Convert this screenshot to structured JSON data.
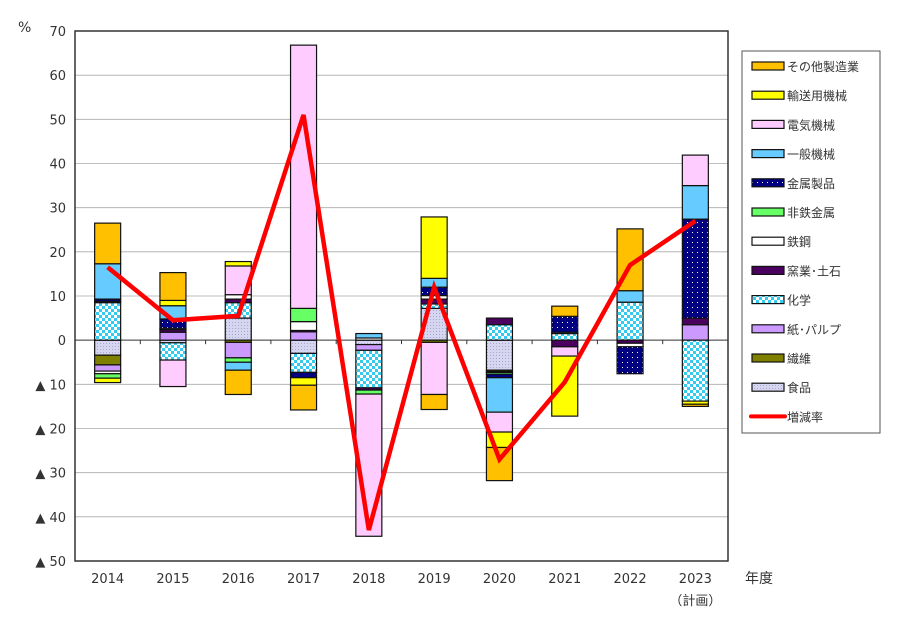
{
  "chart_data": {
    "type": "bar",
    "stacked": true,
    "y_unit_label": "%",
    "x_unit_label": "年度",
    "categories": [
      "2014",
      "2015",
      "2016",
      "2017",
      "2018",
      "2019",
      "2020",
      "2021",
      "2022",
      "2023"
    ],
    "category_sublabels": [
      "",
      "",
      "",
      "",
      "",
      "",
      "",
      "",
      "",
      "（計画）"
    ],
    "ylim": [
      -50,
      70
    ],
    "yticks": [
      70,
      60,
      50,
      40,
      30,
      20,
      10,
      0,
      -10,
      -20,
      -30,
      -40,
      -50
    ],
    "ytick_labels": [
      "70",
      "60",
      "50",
      "40",
      "30",
      "20",
      "10",
      "0",
      "▲ 10",
      "▲ 20",
      "▲ 30",
      "▲ 40",
      "▲ 50"
    ],
    "grid": true,
    "legend_position": "right",
    "series": [
      {
        "name": "その他製造業",
        "color": "#FFC000",
        "pattern": "solid",
        "values": [
          9.2,
          6.3,
          -5.5,
          -5.6,
          0,
          -3.4,
          -7.5,
          2.3,
          14.0,
          -0.5
        ]
      },
      {
        "name": "輸送用機械",
        "color": "#FFFF00",
        "pattern": "solid",
        "values": [
          -1.0,
          1.2,
          1.0,
          -1.7,
          0,
          13.9,
          -3.5,
          -13.6,
          0,
          -0.7
        ]
      },
      {
        "name": "電気機械",
        "color": "#FFCCFF",
        "pattern": "solid",
        "values": [
          0,
          -6.0,
          6.5,
          59.6,
          -32.2,
          -11.8,
          -4.5,
          -2.1,
          0,
          6.9
        ]
      },
      {
        "name": "一般機械",
        "color": "#66CCFF",
        "pattern": "solid",
        "values": [
          8.0,
          3.0,
          -1.8,
          0,
          1.0,
          2.0,
          -7.8,
          0,
          2.6,
          7.6
        ]
      },
      {
        "name": "金属製品",
        "color": "#000080",
        "pattern": "dots",
        "values": [
          0.5,
          2.1,
          0,
          -1.2,
          0,
          1.9,
          -0.8,
          3.6,
          -6.1,
          22.4
        ]
      },
      {
        "name": "非鉄金属",
        "color": "#66FF66",
        "pattern": "solid",
        "values": [
          -1.0,
          0,
          -1.0,
          3.0,
          -0.9,
          0,
          -0.4,
          0,
          0,
          0
        ]
      },
      {
        "name": "鉄鋼",
        "color": "#FFFFFF",
        "pattern": "solid",
        "values": [
          -0.6,
          0.3,
          1.0,
          2.0,
          0.5,
          0.8,
          -0.2,
          0.3,
          -0.8,
          0
        ]
      },
      {
        "name": "窯業･土石",
        "color": "#4B0060",
        "pattern": "solid",
        "values": [
          0.3,
          0.6,
          0.8,
          0.3,
          -0.5,
          1.1,
          1.5,
          -1.5,
          -0.7,
          1.5
        ]
      },
      {
        "name": "化学",
        "color": "#33CCEE",
        "pattern": "checker",
        "values": [
          8.5,
          -3.9,
          3.5,
          -4.3,
          -8.5,
          1.0,
          3.5,
          1.5,
          8.6,
          -13.8
        ]
      },
      {
        "name": "紙･パルプ",
        "color": "#CC99FF",
        "pattern": "solid",
        "values": [
          -1.4,
          1.8,
          -3.5,
          1.9,
          -1.3,
          0,
          0,
          0,
          0,
          3.5
        ]
      },
      {
        "name": "繊維",
        "color": "#808000",
        "pattern": "solid",
        "values": [
          -2.2,
          0,
          -0.5,
          0,
          0,
          -0.5,
          -0.3,
          0,
          0,
          0
        ]
      },
      {
        "name": "食品",
        "color": "#CCCCEE",
        "pattern": "fine",
        "values": [
          -3.4,
          -0.6,
          5.0,
          -3.0,
          -1.0,
          7.2,
          -6.8,
          0,
          0,
          0
        ]
      }
    ],
    "line": {
      "name": "増減率",
      "color": "#FF0000",
      "values": [
        16.5,
        4.5,
        5.5,
        51.0,
        -43.0,
        12.0,
        -27.0,
        -9.5,
        17.0,
        27.0
      ]
    }
  }
}
